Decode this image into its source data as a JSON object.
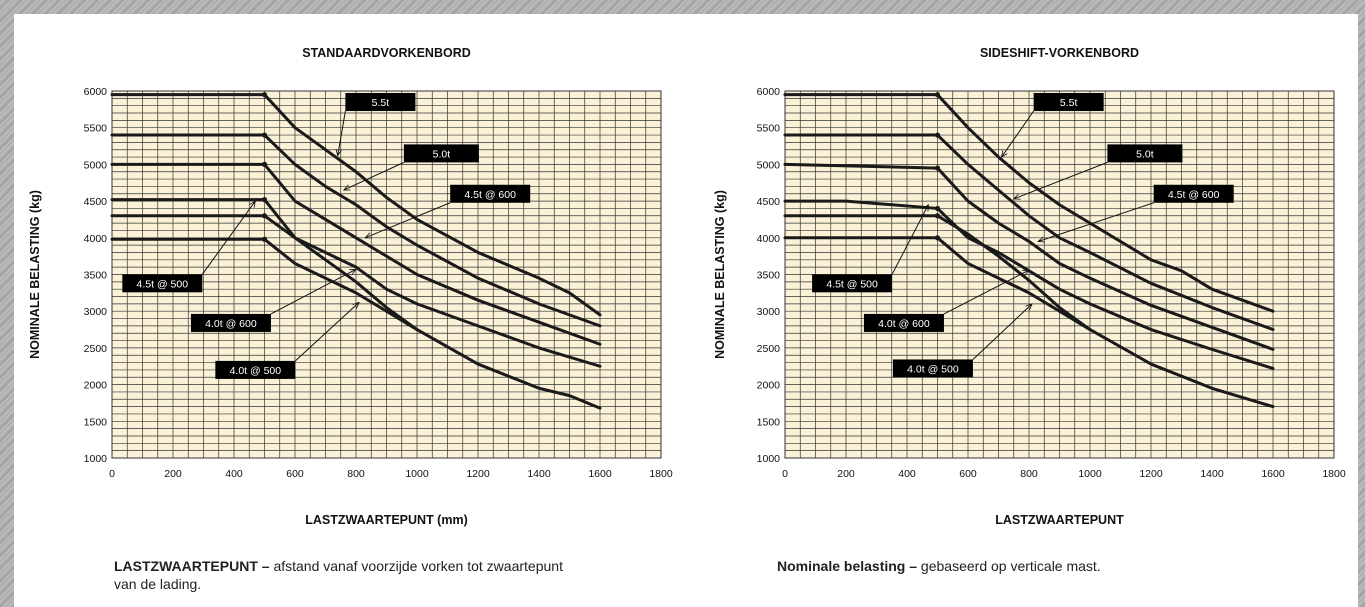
{
  "charts": [
    {
      "title": "STANDAARDVORKENBORD",
      "xlabel": "LASTZWAARTEPUNT (mm)",
      "ylabel": "NOMINALE BELASTING (kg)",
      "note_bold": "LASTZWAARTEPUNT –",
      "note_text": " afstand vanaf voorzijde vorken tot zwaartepunt van de lading."
    },
    {
      "title": "SIDESHIFT-VORKENBORD",
      "xlabel": "LASTZWAARTEPUNT",
      "ylabel": "NOMINALE BELASTING (kg)",
      "note_bold": "Nominale belasting –",
      "note_text": " gebaseerd op verticale mast."
    }
  ],
  "colors": {
    "plot_bg": "#faf1d6",
    "grid": "#333333",
    "line": "#1a1a1a",
    "label_bg": "#000000",
    "label_text": "#ffffff"
  },
  "chart_data": [
    {
      "type": "line",
      "title": "STANDAARDVORKENBORD",
      "xlabel": "LASTZWAARTEPUNT (mm)",
      "ylabel": "NOMINALE BELASTING (kg)",
      "xlim": [
        0,
        1800
      ],
      "ylim": [
        1000,
        6000
      ],
      "xticks": [
        0,
        200,
        400,
        600,
        800,
        1000,
        1200,
        1400,
        1600,
        1800
      ],
      "yticks": [
        1000,
        1500,
        2000,
        2500,
        3000,
        3500,
        4000,
        4500,
        5000,
        5500,
        6000
      ],
      "grid": true,
      "series": [
        {
          "name": "5.5t",
          "x": [
            0,
            500,
            600,
            700,
            800,
            900,
            1000,
            1200,
            1400,
            1500,
            1600
          ],
          "y": [
            5950,
            5950,
            5500,
            5200,
            4900,
            4550,
            4250,
            3800,
            3450,
            3250,
            2950
          ]
        },
        {
          "name": "5.0t",
          "x": [
            0,
            500,
            600,
            700,
            800,
            900,
            1000,
            1200,
            1400,
            1600
          ],
          "y": [
            5400,
            5400,
            5000,
            4700,
            4450,
            4150,
            3900,
            3450,
            3100,
            2800
          ]
        },
        {
          "name": "4.5t @ 600",
          "x": [
            0,
            500,
            600,
            700,
            800,
            900,
            1000,
            1200,
            1400,
            1600
          ],
          "y": [
            5000,
            5000,
            4500,
            4250,
            4000,
            3750,
            3500,
            3150,
            2850,
            2550
          ]
        },
        {
          "name": "4.5t @ 500",
          "x": [
            0,
            500,
            600,
            700,
            800,
            900,
            1000,
            1200,
            1400,
            1600
          ],
          "y": [
            4520,
            4520,
            4000,
            3800,
            3600,
            3300,
            3100,
            2800,
            2500,
            2250
          ]
        },
        {
          "name": "4.0t @ 600",
          "x": [
            0,
            500,
            600,
            700,
            800,
            900,
            1000,
            1200,
            1400,
            1500,
            1600
          ],
          "y": [
            4300,
            4300,
            4000,
            3700,
            3400,
            3050,
            2750,
            2280,
            1950,
            1850,
            1680
          ]
        },
        {
          "name": "4.0t @ 500",
          "x": [
            0,
            500,
            600,
            700,
            800,
            900,
            1000
          ],
          "y": [
            3980,
            3980,
            3650,
            3450,
            3250,
            3000,
            2750
          ]
        }
      ],
      "labels": [
        {
          "text": "5.5t",
          "x": 880,
          "y": 5850,
          "arrow_to": [
            740,
            5120
          ]
        },
        {
          "text": "5.0t",
          "x": 1080,
          "y": 5150,
          "arrow_to": [
            760,
            4650
          ]
        },
        {
          "text": "4.5t @ 600",
          "x": 1240,
          "y": 4600,
          "arrow_to": [
            830,
            4000
          ]
        },
        {
          "text": "4.5t @ 500",
          "x": 165,
          "y": 3380,
          "arrow_to": [
            470,
            4500
          ]
        },
        {
          "text": "4.0t @ 600",
          "x": 390,
          "y": 2840,
          "arrow_to": [
            800,
            3570
          ]
        },
        {
          "text": "4.0t @ 500",
          "x": 470,
          "y": 2200,
          "arrow_to": [
            810,
            3120
          ]
        }
      ]
    },
    {
      "type": "line",
      "title": "SIDESHIFT-VORKENBORD",
      "xlabel": "LASTZWAARTEPUNT",
      "ylabel": "NOMINALE BELASTING (kg)",
      "xlim": [
        0,
        1800
      ],
      "ylim": [
        1000,
        6000
      ],
      "xticks": [
        0,
        200,
        400,
        600,
        800,
        1000,
        1200,
        1400,
        1600,
        1800
      ],
      "yticks": [
        1000,
        1500,
        2000,
        2500,
        3000,
        3500,
        4000,
        4500,
        5000,
        5500,
        6000
      ],
      "grid": true,
      "series": [
        {
          "name": "5.5t",
          "x": [
            0,
            500,
            600,
            700,
            800,
            900,
            1000,
            1200,
            1300,
            1400,
            1500,
            1600
          ],
          "y": [
            5950,
            5950,
            5500,
            5100,
            4750,
            4450,
            4200,
            3700,
            3550,
            3300,
            3150,
            3000
          ]
        },
        {
          "name": "5.0t",
          "x": [
            0,
            500,
            600,
            700,
            800,
            900,
            1000,
            1200,
            1400,
            1600
          ],
          "y": [
            5400,
            5400,
            5000,
            4650,
            4300,
            4000,
            3800,
            3380,
            3050,
            2750
          ]
        },
        {
          "name": "4.5t @ 600",
          "x": [
            0,
            500,
            600,
            700,
            800,
            900,
            1000,
            1200,
            1400,
            1600
          ],
          "y": [
            5000,
            4950,
            4500,
            4200,
            3950,
            3650,
            3450,
            3080,
            2780,
            2480
          ]
        },
        {
          "name": "4.5t @ 500",
          "x": [
            0,
            200,
            500,
            600,
            700,
            800,
            900,
            1000,
            1200,
            1400,
            1600
          ],
          "y": [
            4500,
            4500,
            4400,
            4000,
            3800,
            3550,
            3300,
            3100,
            2750,
            2480,
            2220
          ]
        },
        {
          "name": "4.0t @ 600",
          "x": [
            0,
            500,
            600,
            700,
            800,
            900,
            1000,
            1200,
            1400,
            1600
          ],
          "y": [
            4300,
            4300,
            4050,
            3750,
            3420,
            3050,
            2750,
            2280,
            1950,
            1700
          ]
        },
        {
          "name": "4.0t @ 500",
          "x": [
            0,
            500,
            600,
            700,
            800,
            900,
            1000
          ],
          "y": [
            4000,
            4000,
            3650,
            3450,
            3250,
            3000,
            2750
          ]
        }
      ],
      "labels": [
        {
          "text": "5.5t",
          "x": 930,
          "y": 5850,
          "arrow_to": [
            710,
            5100
          ]
        },
        {
          "text": "5.0t",
          "x": 1180,
          "y": 5150,
          "arrow_to": [
            750,
            4530
          ]
        },
        {
          "text": "4.5t @ 600",
          "x": 1340,
          "y": 4600,
          "arrow_to": [
            830,
            3950
          ]
        },
        {
          "text": "4.5t @ 500",
          "x": 220,
          "y": 3380,
          "arrow_to": [
            470,
            4450
          ]
        },
        {
          "text": "4.0t @ 600",
          "x": 390,
          "y": 2840,
          "arrow_to": [
            800,
            3560
          ]
        },
        {
          "text": "4.0t @ 500",
          "x": 485,
          "y": 2220,
          "arrow_to": [
            810,
            3100
          ]
        }
      ]
    }
  ]
}
